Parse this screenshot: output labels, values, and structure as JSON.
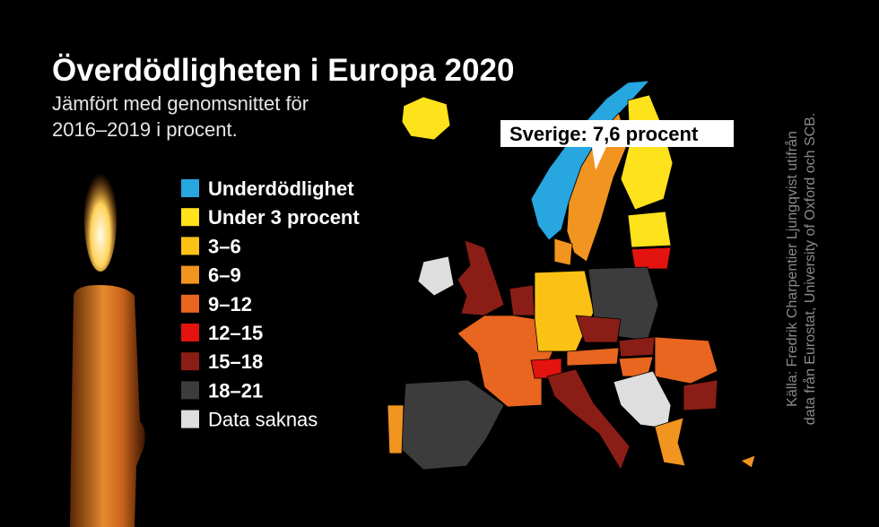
{
  "header": {
    "title": "Överdödligheten i Europa 2020",
    "subtitle": [
      "Jämfört med genomsnittet för",
      "2016–2019 i procent."
    ]
  },
  "legend": {
    "items": [
      {
        "label": "Underdödlighet",
        "color": "#27a6e0"
      },
      {
        "label": "Under 3 procent",
        "color": "#fde21c"
      },
      {
        "label": "3–6",
        "color": "#fbc115"
      },
      {
        "label": "6–9",
        "color": "#f29420"
      },
      {
        "label": "9–12",
        "color": "#e8661f"
      },
      {
        "label": "12–15",
        "color": "#e3130f"
      },
      {
        "label": "15–18",
        "color": "#8a1e17"
      },
      {
        "label": "18–21",
        "color": "#3c3c3c"
      },
      {
        "label": "Data saknas",
        "color": "#dedede"
      }
    ]
  },
  "callout": "Sverige: 7,6 procent",
  "source": [
    "Källa: Fredrik Charpentier Ljungqvist utifrån",
    "data från Eurostat, University of Oxford och SCB."
  ]
}
